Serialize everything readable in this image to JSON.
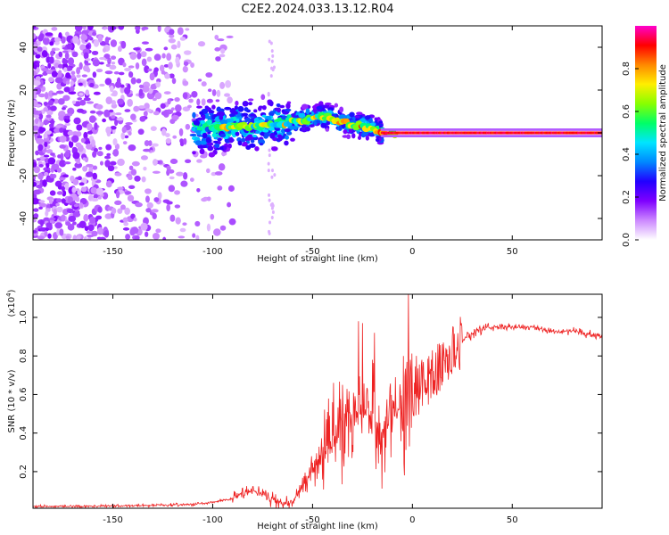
{
  "title": "C2E2.2024.033.13.12.R04",
  "chart_data": [
    {
      "type": "heatmap",
      "title": "C2E2.2024.033.13.12.R04",
      "xlabel": "Height of straight line (km)",
      "ylabel": "Frequency (Hz)",
      "xlim": [
        -190,
        95
      ],
      "ylim": [
        -50,
        50
      ],
      "x_ticks": [
        -150,
        -100,
        -50,
        0,
        50
      ],
      "x_tick_labels": [
        "-150",
        "-100",
        "-50",
        "0",
        "50"
      ],
      "y_ticks": [
        -40,
        -20,
        0,
        20,
        40
      ],
      "y_tick_labels": [
        "-40",
        "-20",
        "0",
        "20",
        "40"
      ],
      "colorbar": {
        "label": "Normalized spectral amplitude",
        "range": [
          0.0,
          1.0
        ],
        "ticks": [
          0.0,
          0.2,
          0.4,
          0.6,
          0.8
        ],
        "tick_labels": [
          "0.0",
          "0.2",
          "0.4",
          "0.6",
          "0.8"
        ],
        "colormap": [
          "#ffffff",
          "#cc88ff",
          "#7f00ff",
          "#2200ff",
          "#0088ff",
          "#00e5ff",
          "#00ff66",
          "#88ff00",
          "#ffee00",
          "#ff8800",
          "#ff0000",
          "#ff00cc"
        ]
      },
      "ridge": {
        "x": [
          -100,
          -90,
          -80,
          -70,
          -60,
          -50,
          -45,
          -40,
          -35,
          -30,
          -25,
          -20,
          -15,
          -10,
          -8,
          -5,
          0,
          20,
          50,
          95
        ],
        "y": [
          2,
          3,
          3,
          4,
          5,
          7,
          8,
          7,
          5,
          4,
          3,
          2,
          0,
          0,
          -2,
          0,
          0,
          0,
          0,
          0
        ]
      },
      "noise_region": {
        "x_start": -190,
        "x_end": -100,
        "y_range": [
          -50,
          50
        ]
      },
      "grid": false
    },
    {
      "type": "line",
      "title": "",
      "xlabel": "Height of straight line (km)",
      "ylabel": "SNR (10 * v/v)",
      "scale_label": "(x10",
      "scale_exponent": "4",
      "scale_close": ")",
      "xlim": [
        -190,
        95
      ],
      "ylim": [
        0.01,
        1.12
      ],
      "x_ticks": [
        -150,
        -100,
        -50,
        0,
        50
      ],
      "x_tick_labels": [
        "-150",
        "-100",
        "-50",
        "0",
        "50"
      ],
      "y_ticks": [
        0.2,
        0.4,
        0.6,
        0.8,
        1.0
      ],
      "y_tick_labels": [
        "0.2",
        "0.4",
        "0.6",
        "0.8",
        "1.0"
      ],
      "line_color": "#ee2222",
      "series": [
        {
          "x": [
            -190,
            -160,
            -130,
            -110,
            -100,
            -90,
            -85,
            -80,
            -75,
            -70,
            -65,
            -60,
            -55,
            -50,
            -45,
            -40,
            -35,
            -30,
            -25,
            -20,
            -15,
            -10,
            -5,
            0,
            5,
            10,
            15,
            20,
            25,
            30,
            35,
            40,
            45,
            50,
            55,
            60,
            65,
            70,
            75,
            80,
            85,
            90,
            95
          ],
          "values": [
            0.02,
            0.02,
            0.025,
            0.03,
            0.04,
            0.06,
            0.09,
            0.1,
            0.08,
            0.06,
            0.03,
            0.05,
            0.12,
            0.2,
            0.3,
            0.35,
            0.45,
            0.5,
            0.5,
            0.5,
            0.4,
            0.55,
            0.5,
            0.6,
            0.65,
            0.7,
            0.75,
            0.82,
            0.88,
            0.92,
            0.94,
            0.95,
            0.95,
            0.95,
            0.95,
            0.95,
            0.94,
            0.93,
            0.93,
            0.93,
            0.92,
            0.91,
            0.9
          ]
        }
      ],
      "spikes": [
        {
          "x": -40,
          "y": 0.56
        },
        {
          "x": -35,
          "y": 0.65
        },
        {
          "x": -27,
          "y": 0.98
        },
        {
          "x": -25,
          "y": 0.97
        },
        {
          "x": -20,
          "y": 0.78
        },
        {
          "x": -19,
          "y": 0.92
        },
        {
          "x": -2,
          "y": 1.12
        },
        {
          "x": -1,
          "y": 0.78
        },
        {
          "x": 2,
          "y": 0.8
        }
      ],
      "grid": false
    }
  ]
}
